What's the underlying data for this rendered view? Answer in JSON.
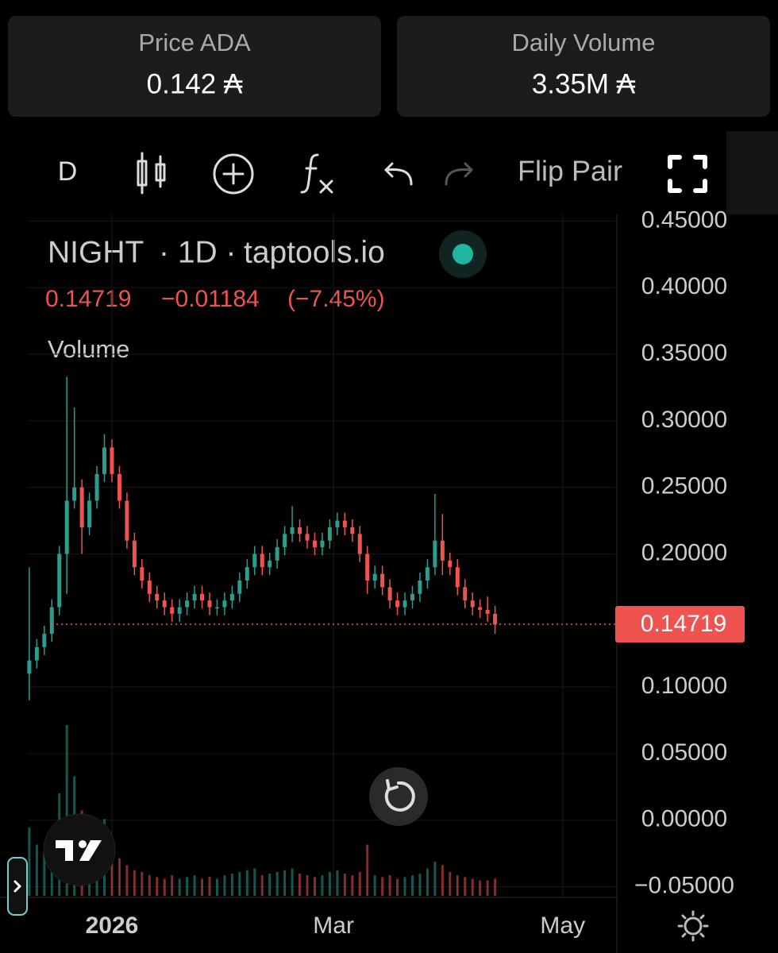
{
  "header": {
    "cards": [
      {
        "label": "Price ADA",
        "value": "0.142 ₳"
      },
      {
        "label": "Daily Volume",
        "value": "3.35M ₳"
      }
    ]
  },
  "toolbar": {
    "interval": "D",
    "flip": "Flip Pair"
  },
  "legend": {
    "symbol": "NIGHT",
    "interval": "· 1D ·",
    "source": "taptools.io",
    "change": "−0.01184",
    "change_pct": "(−7.45%)",
    "volume_label": "Volume"
  },
  "chart_data": {
    "type": "candlestick",
    "open": [
      0.11,
      0.12,
      0.13,
      0.14,
      0.16,
      0.2,
      0.24,
      0.25,
      0.22,
      0.24,
      0.26,
      0.28,
      0.26,
      0.24,
      0.21,
      0.19,
      0.18,
      0.17,
      0.165,
      0.16,
      0.155,
      0.16,
      0.165,
      0.17,
      0.165,
      0.16,
      0.16,
      0.165,
      0.17,
      0.18,
      0.19,
      0.2,
      0.19,
      0.195,
      0.205,
      0.215,
      0.22,
      0.215,
      0.21,
      0.205,
      0.21,
      0.22,
      0.225,
      0.22,
      0.215,
      0.2,
      0.18,
      0.185,
      0.175,
      0.165,
      0.16,
      0.165,
      0.17,
      0.18,
      0.19,
      0.21,
      0.195,
      0.19,
      0.175,
      0.165,
      0.16,
      0.158,
      0.155
    ],
    "high": [
      0.19,
      0.136,
      0.146,
      0.166,
      0.206,
      0.333,
      0.31,
      0.256,
      0.246,
      0.266,
      0.29,
      0.286,
      0.266,
      0.246,
      0.216,
      0.196,
      0.186,
      0.176,
      0.171,
      0.166,
      0.166,
      0.171,
      0.176,
      0.176,
      0.171,
      0.166,
      0.171,
      0.176,
      0.186,
      0.196,
      0.206,
      0.206,
      0.201,
      0.211,
      0.221,
      0.236,
      0.226,
      0.221,
      0.216,
      0.216,
      0.226,
      0.231,
      0.231,
      0.226,
      0.221,
      0.206,
      0.191,
      0.191,
      0.181,
      0.171,
      0.171,
      0.176,
      0.186,
      0.196,
      0.245,
      0.23,
      0.201,
      0.196,
      0.181,
      0.171,
      0.166,
      0.168,
      0.161
    ],
    "low": [
      0.09,
      0.114,
      0.124,
      0.134,
      0.154,
      0.17,
      0.234,
      0.2,
      0.214,
      0.234,
      0.254,
      0.254,
      0.234,
      0.204,
      0.184,
      0.174,
      0.164,
      0.159,
      0.154,
      0.149,
      0.149,
      0.154,
      0.159,
      0.159,
      0.154,
      0.154,
      0.154,
      0.159,
      0.164,
      0.174,
      0.184,
      0.184,
      0.184,
      0.189,
      0.199,
      0.209,
      0.209,
      0.204,
      0.199,
      0.199,
      0.204,
      0.214,
      0.214,
      0.209,
      0.194,
      0.17,
      0.174,
      0.169,
      0.159,
      0.154,
      0.154,
      0.159,
      0.164,
      0.174,
      0.184,
      0.184,
      0.184,
      0.169,
      0.159,
      0.154,
      0.152,
      0.149,
      0.14
    ],
    "close": [
      0.12,
      0.13,
      0.14,
      0.16,
      0.2,
      0.24,
      0.25,
      0.22,
      0.24,
      0.26,
      0.28,
      0.26,
      0.24,
      0.21,
      0.19,
      0.18,
      0.17,
      0.165,
      0.16,
      0.155,
      0.16,
      0.165,
      0.17,
      0.165,
      0.16,
      0.16,
      0.165,
      0.17,
      0.18,
      0.19,
      0.2,
      0.19,
      0.195,
      0.205,
      0.215,
      0.22,
      0.215,
      0.21,
      0.205,
      0.21,
      0.22,
      0.225,
      0.22,
      0.215,
      0.2,
      0.18,
      0.185,
      0.175,
      0.165,
      0.16,
      0.165,
      0.17,
      0.18,
      0.19,
      0.21,
      0.195,
      0.19,
      0.175,
      0.165,
      0.16,
      0.158,
      0.155,
      0.147
    ],
    "volume": [
      40,
      30,
      25,
      35,
      60,
      100,
      70,
      50,
      40,
      35,
      45,
      30,
      22,
      18,
      15,
      14,
      12,
      11,
      10,
      12,
      10,
      11,
      12,
      10,
      11,
      10,
      12,
      13,
      14,
      15,
      16,
      12,
      13,
      14,
      15,
      16,
      13,
      12,
      11,
      12,
      14,
      15,
      13,
      12,
      14,
      30,
      12,
      11,
      12,
      10,
      11,
      12,
      13,
      16,
      20,
      18,
      14,
      12,
      11,
      10,
      9,
      9,
      10
    ],
    "up_color": "#2a9d8f",
    "down_color": "#ef5350",
    "last_price": 0.14719,
    "xlim": [
      -0.2,
      78
    ],
    "xticks": [
      {
        "value": 11,
        "label": "2026"
      },
      {
        "value": 40.5,
        "label": "Mar"
      },
      {
        "value": 71,
        "label": "May"
      }
    ],
    "ylim": [
      -0.058,
      0.455
    ],
    "yticks": [
      {
        "value": 0.45,
        "label": "0.45000"
      },
      {
        "value": 0.4,
        "label": "0.40000"
      },
      {
        "value": 0.35,
        "label": "0.35000"
      },
      {
        "value": 0.3,
        "label": "0.30000"
      },
      {
        "value": 0.25,
        "label": "0.25000"
      },
      {
        "value": 0.2,
        "label": "0.20000"
      },
      {
        "value": 0.1,
        "label": "0.10000"
      },
      {
        "value": 0.05,
        "label": "0.05000"
      },
      {
        "value": 0,
        "label": "0.00000"
      },
      {
        "value": -0.05,
        "label": "−0.05000"
      }
    ],
    "grid": true
  }
}
